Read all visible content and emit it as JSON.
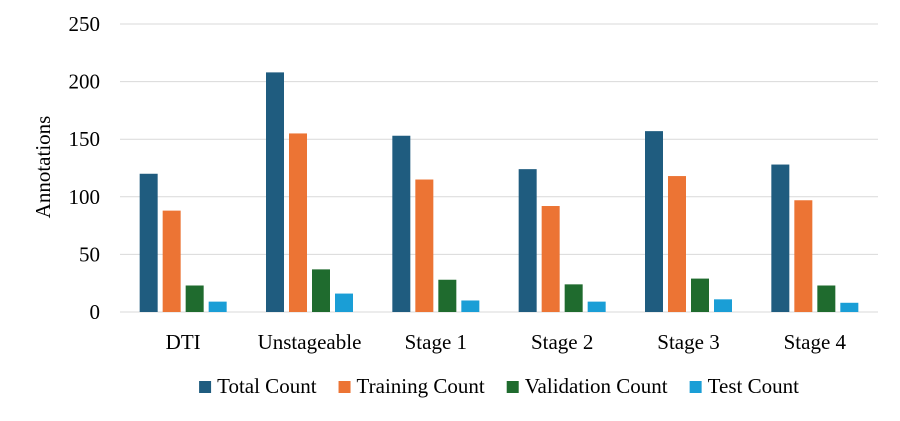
{
  "chart_data": {
    "type": "bar",
    "title": "",
    "xlabel": "",
    "ylabel": "Annotations",
    "ylim": [
      0,
      250
    ],
    "yticks": [
      0,
      50,
      100,
      150,
      200,
      250
    ],
    "grid": true,
    "legend_position": "bottom",
    "categories": [
      "DTI",
      "Unstageable",
      "Stage 1",
      "Stage 2",
      "Stage 3",
      "Stage 4"
    ],
    "series": [
      {
        "name": "Total Count",
        "color": "#1f5c7f",
        "values": [
          120,
          208,
          153,
          124,
          157,
          128
        ]
      },
      {
        "name": "Training Count",
        "color": "#ec7434",
        "values": [
          88,
          155,
          115,
          92,
          118,
          97
        ]
      },
      {
        "name": "Validation Count",
        "color": "#1f6b2e",
        "values": [
          23,
          37,
          28,
          24,
          29,
          23
        ]
      },
      {
        "name": "Test Count",
        "color": "#1a9ed6",
        "values": [
          9,
          16,
          10,
          9,
          11,
          8
        ]
      }
    ]
  }
}
